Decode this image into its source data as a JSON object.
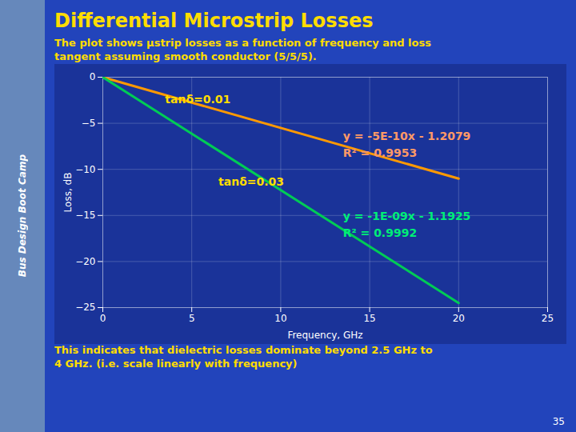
{
  "chart_data": {
    "type": "line",
    "title": "Differential Microstrip Losses",
    "subtitle": "The plot shows μstrip losses as a function of frequency and loss\ntangent assuming smooth conductor (5/5/5).",
    "caption": "This indicates that dielectric losses dominate beyond 2.5 GHz to\n4 GHz. (i.e. scale linearly with frequency)",
    "side_text": "Bus Design Boot Camp",
    "page_number": "35",
    "xlabel": "Frequency, GHz",
    "ylabel": "Loss, dB",
    "x": [
      0,
      20
    ],
    "series": [
      {
        "color": "#ff9900",
        "values": [
          0,
          -11.0
        ]
      },
      {
        "color": "#00cc55",
        "values": [
          0,
          -24.5
        ]
      }
    ],
    "xlim": [
      0,
      25
    ],
    "ylim": [
      -25,
      0
    ],
    "xticks": [
      0,
      5,
      10,
      15,
      20,
      25
    ],
    "yticks": [
      0,
      -5,
      -10,
      -15,
      -20,
      -25
    ],
    "grid": true,
    "annotations": [
      {
        "text": "tanδ=0.01",
        "x": 3.5,
        "y": -2.8,
        "color": "#ffdd00"
      },
      {
        "text": "tanδ=0.03",
        "x": 6.5,
        "y": -11.8,
        "color": "#ffdd00"
      },
      {
        "text": "y = -5E-10x - 1.2079",
        "x": 13.5,
        "y": -6.8,
        "color": "#ff9966"
      },
      {
        "text": "R² = 0.9953",
        "x": 13.5,
        "y": -8.6,
        "color": "#ff9966"
      },
      {
        "text": "y = -1E-09x - 1.1925",
        "x": 13.5,
        "y": -15.5,
        "color": "#00ee77"
      },
      {
        "text": "R² = 0.9992",
        "x": 13.5,
        "y": -17.3,
        "color": "#00ee77"
      }
    ]
  }
}
